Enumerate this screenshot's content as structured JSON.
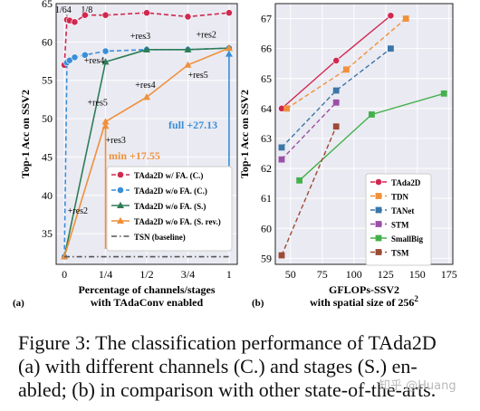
{
  "colors": {
    "tada_c": "#d0284f",
    "tada_wo_c": "#3a8ed8",
    "tada_wo_s": "#2e7d56",
    "tada_wo_srev": "#f0903a",
    "tsn": "#555555",
    "tdn": "#f0903a",
    "tanet": "#3a76a8",
    "stm": "#9b4fa8",
    "smallbig": "#44b04c",
    "tsm": "#9c4a35"
  },
  "chart_data": [
    {
      "type": "line",
      "panel_label": "(a)",
      "xlabel": "Percentage of channels/stages",
      "xlabel2": "with TAdaConv enabled",
      "ylabel": "Top-1 Acc on SSV2",
      "ylim": [
        31,
        65
      ],
      "yticks": [
        35,
        40,
        45,
        50,
        55,
        60,
        65
      ],
      "xlim": [
        -0.05,
        1.05
      ],
      "xticks": [
        0,
        0.25,
        0.5,
        0.75,
        1
      ],
      "xtick_labels": [
        "0",
        "1/4",
        "1/2",
        "3/4",
        "1"
      ],
      "grid": true,
      "legend_position": "lower-right",
      "top_labels": [
        {
          "x": 0.0156,
          "text": "1/64"
        },
        {
          "x": 0.125,
          "text": "1/8"
        }
      ],
      "series": [
        {
          "name": "TAda2D w/ FA. (C.)",
          "color_key": "tada_c",
          "dash": "dashed",
          "marker": "circle",
          "x": [
            0,
            0.0156,
            0.0313,
            0.0625,
            0.125,
            0.25,
            0.5,
            0.75,
            1
          ],
          "y": [
            57.0,
            62.9,
            62.8,
            62.6,
            63.5,
            63.5,
            63.8,
            63.3,
            63.8
          ]
        },
        {
          "name": "TAda2D w/o FA. (C.)",
          "color_key": "tada_wo_c",
          "dash": "dashed",
          "marker": "circle",
          "x": [
            0,
            0.0156,
            0.0313,
            0.0625,
            0.125,
            0.25,
            0.5,
            0.75,
            1
          ],
          "y": [
            32.0,
            57.3,
            57.6,
            58.0,
            58.3,
            58.8,
            59.0,
            59.0,
            59.2
          ]
        },
        {
          "name": "TAda2D w/o FA. (S.)",
          "color_key": "tada_wo_s",
          "dash": "solid",
          "marker": "triangle",
          "x": [
            0,
            0.25,
            0.5,
            0.75,
            1
          ],
          "y": [
            32.0,
            57.4,
            59.0,
            59.0,
            59.2
          ]
        },
        {
          "name": "TAda2D w/o FA. (S. rev.)",
          "color_key": "tada_wo_srev",
          "dash": "solid",
          "marker": "triangle",
          "x": [
            0,
            0.25,
            0.5,
            0.75,
            1
          ],
          "y": [
            32.0,
            49.6,
            52.8,
            57.0,
            59.2
          ]
        },
        {
          "name": "TSN (baseline)",
          "color_key": "tsn",
          "dash": "dashdot",
          "marker": "none",
          "x": [
            0,
            1
          ],
          "y": [
            32.0,
            32.0
          ]
        }
      ],
      "annotations": [
        {
          "text": "+res2",
          "x": 0.02,
          "y": 37.6
        },
        {
          "text": "+res3",
          "x": 0.25,
          "y": 46.8
        },
        {
          "text": "+res4",
          "x": 0.43,
          "y": 54.0
        },
        {
          "text": "+res5",
          "x": 0.75,
          "y": 55.3
        },
        {
          "text": "+res3",
          "x": 0.4,
          "y": 60.4
        },
        {
          "text": "+res2",
          "x": 0.8,
          "y": 60.6
        },
        {
          "text": "+res4",
          "x": 0.12,
          "y": 57.2
        },
        {
          "text": "+res5",
          "x": 0.14,
          "y": 51.7
        }
      ],
      "callouts": [
        {
          "text": "full +27.13",
          "color_key": "tada_wo_c"
        },
        {
          "text": "min +17.55",
          "color_key": "tada_wo_srev"
        }
      ]
    },
    {
      "type": "scatter",
      "panel_label": "(b)",
      "xlabel": "GFLOPs-SSV2",
      "xlabel2": "with spatial size of 256",
      "xlabel2_sup": "2",
      "ylabel": "Top-1 Acc on SSV2",
      "xlim": [
        38,
        178
      ],
      "ylim": [
        58.8,
        67.5
      ],
      "xticks": [
        50,
        75,
        100,
        125,
        150,
        175
      ],
      "yticks": [
        59,
        60,
        61,
        62,
        63,
        64,
        65,
        66,
        67
      ],
      "grid": true,
      "legend_position": "lower-right",
      "series": [
        {
          "name": "TAda2D",
          "color_key": "tada_c",
          "marker": "circle",
          "dash": "solid",
          "x": [
            43,
            86,
            129
          ],
          "y": [
            64.0,
            65.6,
            67.1
          ]
        },
        {
          "name": "TDN",
          "color_key": "tdn",
          "marker": "square",
          "dash": "dashed",
          "x": [
            47,
            94,
            141
          ],
          "y": [
            64.0,
            65.3,
            67.0
          ]
        },
        {
          "name": "TANet",
          "color_key": "tanet",
          "marker": "square",
          "dash": "dashed",
          "x": [
            43,
            86,
            129
          ],
          "y": [
            62.7,
            64.6,
            66.0
          ]
        },
        {
          "name": "STM",
          "color_key": "stm",
          "marker": "square",
          "dash": "dashed",
          "x": [
            43,
            86
          ],
          "y": [
            62.3,
            64.2
          ]
        },
        {
          "name": "SmallBig",
          "color_key": "smallbig",
          "marker": "square",
          "dash": "solid",
          "x": [
            57,
            114,
            171
          ],
          "y": [
            61.6,
            63.8,
            64.5
          ]
        },
        {
          "name": "TSM",
          "color_key": "tsm",
          "marker": "square",
          "dash": "dashed",
          "x": [
            43,
            86
          ],
          "y": [
            59.1,
            63.4
          ]
        }
      ]
    }
  ],
  "caption": {
    "line1": "Figure 3:  The classification performance of TAda2D",
    "line2": "(a) with different channels (C.) and stages (S.) en-",
    "line3": "abled; (b) in comparison with other state-of-the-arts."
  },
  "watermark": "知乎 @Huang"
}
